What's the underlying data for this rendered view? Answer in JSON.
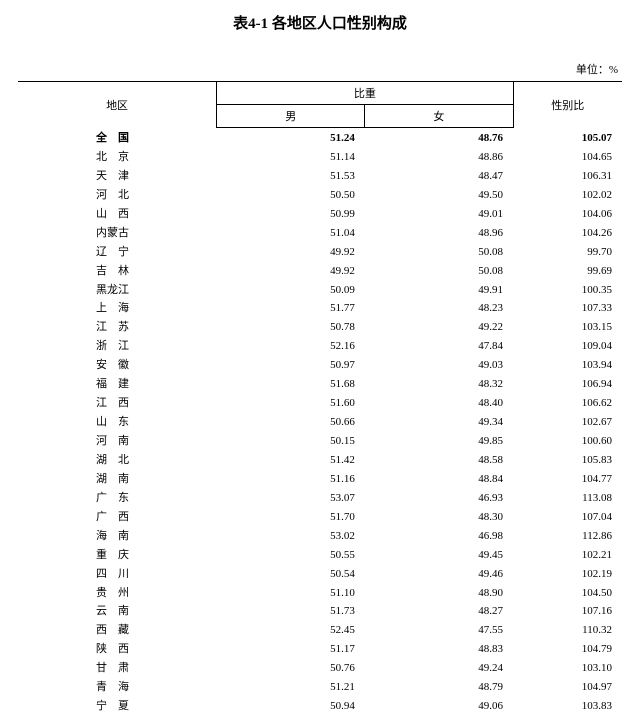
{
  "title": "表4-1 各地区人口性别构成",
  "unit": "单位：%",
  "headers": {
    "region": "地区",
    "proportion": "比重",
    "male": "男",
    "female": "女",
    "ratio": "性别比"
  },
  "rows": [
    {
      "region": "全　国",
      "male": "51.24",
      "female": "48.76",
      "ratio": "105.07",
      "bold": true
    },
    {
      "region": "北　京",
      "male": "51.14",
      "female": "48.86",
      "ratio": "104.65"
    },
    {
      "region": "天　津",
      "male": "51.53",
      "female": "48.47",
      "ratio": "106.31"
    },
    {
      "region": "河　北",
      "male": "50.50",
      "female": "49.50",
      "ratio": "102.02"
    },
    {
      "region": "山　西",
      "male": "50.99",
      "female": "49.01",
      "ratio": "104.06"
    },
    {
      "region": "内蒙古",
      "male": "51.04",
      "female": "48.96",
      "ratio": "104.26"
    },
    {
      "region": "辽　宁",
      "male": "49.92",
      "female": "50.08",
      "ratio": "99.70"
    },
    {
      "region": "吉　林",
      "male": "49.92",
      "female": "50.08",
      "ratio": "99.69"
    },
    {
      "region": "黑龙江",
      "male": "50.09",
      "female": "49.91",
      "ratio": "100.35"
    },
    {
      "region": "上　海",
      "male": "51.77",
      "female": "48.23",
      "ratio": "107.33"
    },
    {
      "region": "江　苏",
      "male": "50.78",
      "female": "49.22",
      "ratio": "103.15"
    },
    {
      "region": "浙　江",
      "male": "52.16",
      "female": "47.84",
      "ratio": "109.04"
    },
    {
      "region": "安　徽",
      "male": "50.97",
      "female": "49.03",
      "ratio": "103.94"
    },
    {
      "region": "福　建",
      "male": "51.68",
      "female": "48.32",
      "ratio": "106.94"
    },
    {
      "region": "江　西",
      "male": "51.60",
      "female": "48.40",
      "ratio": "106.62"
    },
    {
      "region": "山　东",
      "male": "50.66",
      "female": "49.34",
      "ratio": "102.67"
    },
    {
      "region": "河　南",
      "male": "50.15",
      "female": "49.85",
      "ratio": "100.60"
    },
    {
      "region": "湖　北",
      "male": "51.42",
      "female": "48.58",
      "ratio": "105.83"
    },
    {
      "region": "湖　南",
      "male": "51.16",
      "female": "48.84",
      "ratio": "104.77"
    },
    {
      "region": "广　东",
      "male": "53.07",
      "female": "46.93",
      "ratio": "113.08"
    },
    {
      "region": "广　西",
      "male": "51.70",
      "female": "48.30",
      "ratio": "107.04"
    },
    {
      "region": "海　南",
      "male": "53.02",
      "female": "46.98",
      "ratio": "112.86"
    },
    {
      "region": "重　庆",
      "male": "50.55",
      "female": "49.45",
      "ratio": "102.21"
    },
    {
      "region": "四　川",
      "male": "50.54",
      "female": "49.46",
      "ratio": "102.19"
    },
    {
      "region": "贵　州",
      "male": "51.10",
      "female": "48.90",
      "ratio": "104.50"
    },
    {
      "region": "云　南",
      "male": "51.73",
      "female": "48.27",
      "ratio": "107.16"
    },
    {
      "region": "西　藏",
      "male": "52.45",
      "female": "47.55",
      "ratio": "110.32"
    },
    {
      "region": "陕　西",
      "male": "51.17",
      "female": "48.83",
      "ratio": "104.79"
    },
    {
      "region": "甘　肃",
      "male": "50.76",
      "female": "49.24",
      "ratio": "103.10"
    },
    {
      "region": "青　海",
      "male": "51.21",
      "female": "48.79",
      "ratio": "104.97"
    },
    {
      "region": "宁　夏",
      "male": "50.94",
      "female": "49.06",
      "ratio": "103.83"
    }
  ],
  "colors": {
    "background": "#ffffff",
    "text": "#000000",
    "border": "#000000"
  },
  "fontsize": {
    "title": 15,
    "body": 11
  }
}
